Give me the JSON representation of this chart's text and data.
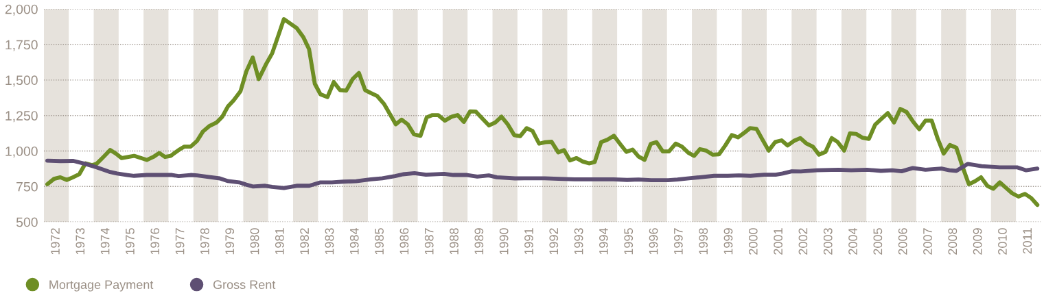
{
  "chart_data": {
    "type": "line",
    "xlim": [
      1972,
      2012
    ],
    "ylim": [
      500,
      2000
    ],
    "yticks": [
      {
        "value": 500,
        "label": "500"
      },
      {
        "value": 750,
        "label": "750"
      },
      {
        "value": 1000,
        "label": "1,000"
      },
      {
        "value": 1250,
        "label": "1,250"
      },
      {
        "value": 1500,
        "label": "1,500"
      },
      {
        "value": 1750,
        "label": "1,750"
      },
      {
        "value": 2000,
        "label": "2,000"
      }
    ],
    "xticks": [
      {
        "value": 1972.5,
        "label": "1972"
      },
      {
        "value": 1973.5,
        "label": "1973"
      },
      {
        "value": 1974.5,
        "label": "1974"
      },
      {
        "value": 1975.5,
        "label": "1975"
      },
      {
        "value": 1976.5,
        "label": "1976"
      },
      {
        "value": 1977.5,
        "label": "1977"
      },
      {
        "value": 1978.5,
        "label": "1978"
      },
      {
        "value": 1979.5,
        "label": "1979"
      },
      {
        "value": 1980.5,
        "label": "1980"
      },
      {
        "value": 1981.5,
        "label": "1981"
      },
      {
        "value": 1982.5,
        "label": "1982"
      },
      {
        "value": 1983.5,
        "label": "1983"
      },
      {
        "value": 1984.5,
        "label": "1984"
      },
      {
        "value": 1985.5,
        "label": "1985"
      },
      {
        "value": 1986.5,
        "label": "1986"
      },
      {
        "value": 1987.5,
        "label": "1987"
      },
      {
        "value": 1988.5,
        "label": "1988"
      },
      {
        "value": 1989.5,
        "label": "1989"
      },
      {
        "value": 1990.5,
        "label": "1990"
      },
      {
        "value": 1991.5,
        "label": "1991"
      },
      {
        "value": 1992.5,
        "label": "1992"
      },
      {
        "value": 1993.5,
        "label": "1993"
      },
      {
        "value": 1994.5,
        "label": "1994"
      },
      {
        "value": 1995.5,
        "label": "1995"
      },
      {
        "value": 1996.5,
        "label": "1996"
      },
      {
        "value": 1997.5,
        "label": "1997"
      },
      {
        "value": 1998.5,
        "label": "1998"
      },
      {
        "value": 1999.5,
        "label": "1999"
      },
      {
        "value": 2000.5,
        "label": "2000"
      },
      {
        "value": 2001.5,
        "label": "2001"
      },
      {
        "value": 2002.5,
        "label": "2002"
      },
      {
        "value": 2003.5,
        "label": "2003"
      },
      {
        "value": 2004.5,
        "label": "2004"
      },
      {
        "value": 2005.5,
        "label": "2005"
      },
      {
        "value": 2006.5,
        "label": "2006"
      },
      {
        "value": 2007.5,
        "label": "2007"
      },
      {
        "value": 2008.5,
        "label": "2008"
      },
      {
        "value": 2009.5,
        "label": "2009"
      },
      {
        "value": 2010.5,
        "label": "2010"
      },
      {
        "value": 2011.5,
        "label": "2011"
      }
    ],
    "grid": "y",
    "legend": "bottom left",
    "marker": "none",
    "line_style": "solid",
    "bands": [
      {
        "axis": "x",
        "from": 1972,
        "to": 1973,
        "color": "#e6e2dc"
      },
      {
        "axis": "x",
        "from": 1974,
        "to": 1975,
        "color": "#e6e2dc"
      },
      {
        "axis": "x",
        "from": 1976,
        "to": 1977,
        "color": "#e6e2dc"
      },
      {
        "axis": "x",
        "from": 1978,
        "to": 1979,
        "color": "#e6e2dc"
      },
      {
        "axis": "x",
        "from": 1980,
        "to": 1981,
        "color": "#e6e2dc"
      },
      {
        "axis": "x",
        "from": 1982,
        "to": 1983,
        "color": "#e6e2dc"
      },
      {
        "axis": "x",
        "from": 1984,
        "to": 1985,
        "color": "#e6e2dc"
      },
      {
        "axis": "x",
        "from": 1986,
        "to": 1987,
        "color": "#e6e2dc"
      },
      {
        "axis": "x",
        "from": 1988,
        "to": 1989,
        "color": "#e6e2dc"
      },
      {
        "axis": "x",
        "from": 1990,
        "to": 1991,
        "color": "#e6e2dc"
      },
      {
        "axis": "x",
        "from": 1992,
        "to": 1993,
        "color": "#e6e2dc"
      },
      {
        "axis": "x",
        "from": 1994,
        "to": 1995,
        "color": "#e6e2dc"
      },
      {
        "axis": "x",
        "from": 1996,
        "to": 1997,
        "color": "#e6e2dc"
      },
      {
        "axis": "x",
        "from": 1998,
        "to": 1999,
        "color": "#e6e2dc"
      },
      {
        "axis": "x",
        "from": 2000,
        "to": 2001,
        "color": "#e6e2dc"
      },
      {
        "axis": "x",
        "from": 2002,
        "to": 2003,
        "color": "#e6e2dc"
      },
      {
        "axis": "x",
        "from": 2004,
        "to": 2005,
        "color": "#e6e2dc"
      },
      {
        "axis": "x",
        "from": 2006,
        "to": 2007,
        "color": "#e6e2dc"
      },
      {
        "axis": "x",
        "from": 2008,
        "to": 2009,
        "color": "#e6e2dc"
      },
      {
        "axis": "x",
        "from": 2010,
        "to": 2011,
        "color": "#e6e2dc"
      }
    ],
    "series": [
      {
        "name": "Mortgage Payment",
        "color": "#6e8e24",
        "x": [
          1972.14,
          1972.41,
          1972.66,
          1972.92,
          1973.17,
          1973.42,
          1973.67,
          1973.93,
          1974.11,
          1974.39,
          1974.66,
          1974.89,
          1975.12,
          1975.62,
          1976.13,
          1976.39,
          1976.63,
          1976.86,
          1977.09,
          1977.41,
          1977.64,
          1977.89,
          1978.15,
          1978.38,
          1978.65,
          1978.93,
          1979.16,
          1979.39,
          1979.61,
          1979.89,
          1980.12,
          1980.38,
          1980.62,
          1980.9,
          1981.16,
          1981.4,
          1981.63,
          1982.14,
          1982.41,
          1982.64,
          1982.87,
          1983.1,
          1983.38,
          1983.63,
          1983.88,
          1984.13,
          1984.39,
          1984.64,
          1984.89,
          1985.12,
          1985.37,
          1985.65,
          1985.89,
          1986.12,
          1986.35,
          1986.6,
          1986.85,
          1987.11,
          1987.36,
          1987.59,
          1987.82,
          1988.09,
          1988.37,
          1988.6,
          1988.85,
          1989.1,
          1989.33,
          1989.61,
          1989.86,
          1990.11,
          1990.36,
          1990.61,
          1990.87,
          1991.11,
          1991.37,
          1991.61,
          1991.87,
          1992.12,
          1992.37,
          1992.64,
          1992.87,
          1993.11,
          1993.37,
          1993.62,
          1993.87,
          1994.1,
          1994.36,
          1994.61,
          1994.87,
          1995.13,
          1995.37,
          1995.62,
          1995.86,
          1996.1,
          1996.35,
          1996.58,
          1996.83,
          1997.08,
          1997.35,
          1997.6,
          1997.86,
          1998.09,
          1998.32,
          1998.57,
          1998.84,
          1999.09,
          1999.34,
          1999.6,
          1999.85,
          2000.1,
          2000.33,
          2000.59,
          2000.83,
          2001.08,
          2001.34,
          2001.6,
          2001.84,
          2002.09,
          2002.35,
          2002.6,
          2002.85,
          2003.1,
          2003.36,
          2003.61,
          2003.85,
          2004.11,
          2004.34,
          2004.59,
          2004.85,
          2005.1,
          2005.35,
          2005.6,
          2005.86,
          2006.11,
          2006.36,
          2006.61,
          2006.86,
          2007.12,
          2007.37,
          2007.62,
          2007.86,
          2008.1,
          2008.35,
          2008.61,
          2008.85,
          2009.11,
          2009.36,
          2009.6,
          2009.85,
          2010.09,
          2010.35,
          2010.61,
          2010.85,
          2011.1,
          2011.36,
          2011.61,
          2011.86
        ],
        "values": [
          766,
          804,
          815,
          796,
          815,
          836,
          913,
          901,
          909,
          958,
          1007,
          982,
          950,
          966,
          937,
          958,
          986,
          958,
          966,
          1007,
          1031,
          1031,
          1072,
          1137,
          1177,
          1201,
          1242,
          1315,
          1356,
          1421,
          1559,
          1659,
          1507,
          1607,
          1688,
          1810,
          1929,
          1867,
          1802,
          1718,
          1474,
          1399,
          1380,
          1486,
          1429,
          1425,
          1507,
          1550,
          1429,
          1408,
          1388,
          1331,
          1258,
          1188,
          1221,
          1188,
          1117,
          1107,
          1237,
          1253,
          1253,
          1214,
          1242,
          1253,
          1205,
          1279,
          1278,
          1226,
          1180,
          1201,
          1242,
          1188,
          1112,
          1104,
          1161,
          1140,
          1052,
          1062,
          1065,
          990,
          1006,
          934,
          950,
          926,
          913,
          922,
          1063,
          1080,
          1107,
          1047,
          994,
          1010,
          961,
          938,
          1050,
          1062,
          997,
          997,
          1052,
          1031,
          987,
          966,
          1013,
          1003,
          974,
          977,
          1039,
          1112,
          1096,
          1128,
          1161,
          1156,
          1080,
          1003,
          1063,
          1075,
          1039,
          1071,
          1091,
          1052,
          1031,
          974,
          994,
          1091,
          1063,
          1003,
          1125,
          1120,
          1093,
          1085,
          1185,
          1226,
          1267,
          1201,
          1296,
          1275,
          1210,
          1153,
          1214,
          1214,
          1088,
          982,
          1042,
          1023,
          893,
          766,
          787,
          815,
          755,
          734,
          779,
          739,
          702,
          679,
          698,
          669,
          620
        ]
      },
      {
        "name": "Gross Rent",
        "color": "#5e4f73",
        "x": [
          1972.14,
          1972.66,
          1973.19,
          1973.67,
          1974.11,
          1974.66,
          1974.94,
          1975.35,
          1975.62,
          1976.13,
          1976.68,
          1977.14,
          1977.41,
          1977.89,
          1978.15,
          1978.61,
          1979.06,
          1979.39,
          1979.84,
          1980.12,
          1980.38,
          1980.88,
          1981.16,
          1981.63,
          1982.14,
          1982.65,
          1983.1,
          1983.56,
          1984.02,
          1984.53,
          1985.12,
          1985.58,
          1986.09,
          1986.41,
          1986.87,
          1987.33,
          1988.06,
          1988.43,
          1988.98,
          1989.39,
          1989.85,
          1990.17,
          1990.9,
          1991.36,
          1992.1,
          1992.65,
          1993.29,
          1994.11,
          1994.85,
          1995.4,
          1995.86,
          1996.36,
          1997.05,
          1997.42,
          1997.88,
          1998.33,
          1998.89,
          1999.44,
          1999.89,
          2000.35,
          2000.9,
          2001.36,
          2001.64,
          2002.01,
          2002.37,
          2003.01,
          2003.88,
          2004.39,
          2005.03,
          2005.58,
          2006.04,
          2006.41,
          2006.86,
          2007.37,
          2008.01,
          2008.33,
          2008.61,
          2009.07,
          2009.62,
          2010.35,
          2011.04,
          2011.41,
          2011.86
        ],
        "values": [
          932,
          929,
          930,
          909,
          885,
          852,
          841,
          831,
          825,
          831,
          831,
          831,
          823,
          831,
          828,
          817,
          807,
          788,
          779,
          763,
          750,
          755,
          747,
          739,
          755,
          755,
          779,
          779,
          784,
          787,
          800,
          808,
          823,
          836,
          844,
          833,
          839,
          831,
          831,
          820,
          828,
          815,
          807,
          808,
          808,
          804,
          800,
          800,
          800,
          796,
          799,
          794,
          794,
          799,
          808,
          815,
          825,
          825,
          828,
          825,
          833,
          833,
          841,
          857,
          856,
          864,
          868,
          864,
          868,
          860,
          864,
          857,
          880,
          868,
          876,
          864,
          860,
          909,
          893,
          885,
          885,
          864,
          876
        ]
      }
    ]
  }
}
